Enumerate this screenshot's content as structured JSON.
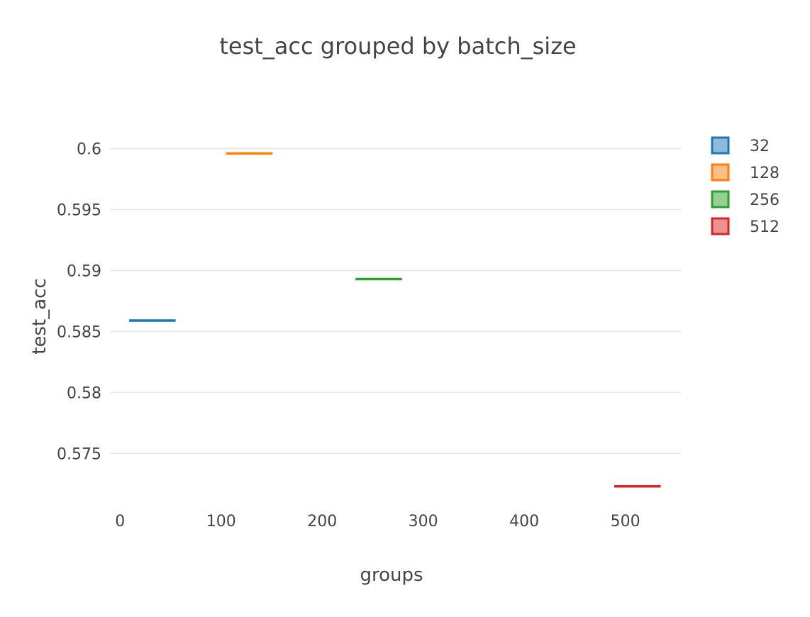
{
  "chart_data": {
    "type": "box",
    "title": "test_acc grouped by batch_size",
    "xlabel": "groups",
    "ylabel": "test_acc",
    "xlim": [
      -10,
      555
    ],
    "ylim": [
      0.5706,
      0.6023
    ],
    "x_ticks": [
      0,
      100,
      200,
      300,
      400,
      500
    ],
    "y_ticks": [
      0.575,
      0.58,
      0.585,
      0.59,
      0.595,
      0.6
    ],
    "y_tick_labels": [
      "0.575",
      "0.58",
      "0.585",
      "0.59",
      "0.595",
      "0.6"
    ],
    "grid": true,
    "legend_position": "right",
    "series": [
      {
        "name": "32",
        "x": 32,
        "value": 0.5859,
        "color": "#1f77b4",
        "fill": "#8fbbd9"
      },
      {
        "name": "128",
        "x": 128,
        "value": 0.5996,
        "color": "#ff7f0e",
        "fill": "#ffbf86"
      },
      {
        "name": "256",
        "x": 256,
        "value": 0.5893,
        "color": "#2ca02c",
        "fill": "#95cf95"
      },
      {
        "name": "512",
        "x": 512,
        "value": 0.5723,
        "color": "#d62728",
        "fill": "#ea9293"
      }
    ]
  }
}
